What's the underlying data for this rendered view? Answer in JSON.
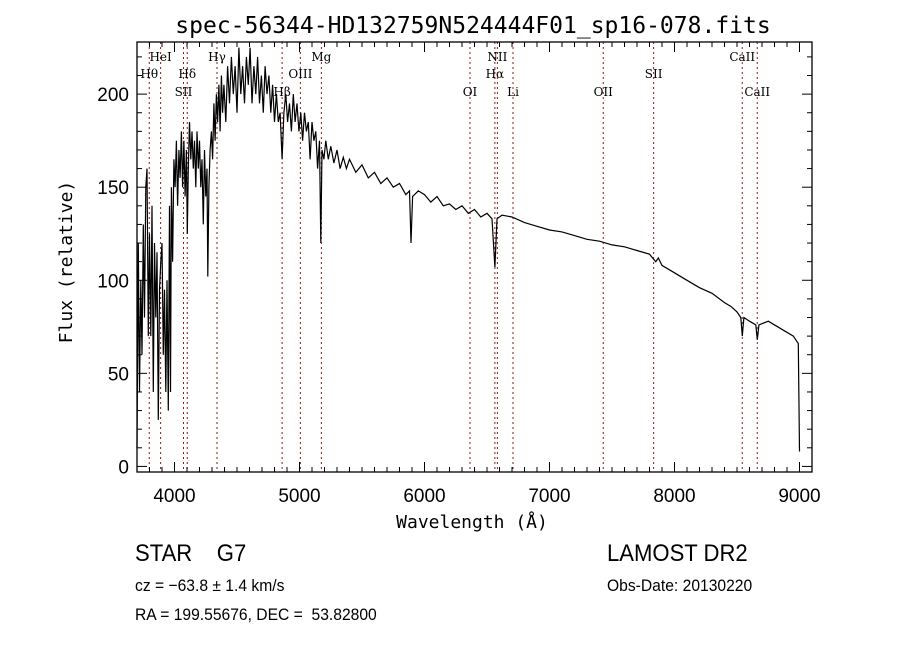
{
  "chart_data": {
    "type": "line",
    "title": "spec-56344-HD132759N524444F01_sp16-078.fits",
    "xlabel": "Wavelength (Å)",
    "ylabel": "Flux (relative)",
    "xlim": [
      3700,
      9100
    ],
    "ylim": [
      -3,
      228
    ],
    "xticks": [
      4000,
      5000,
      6000,
      7000,
      8000,
      9000
    ],
    "yticks": [
      0,
      50,
      100,
      150,
      200
    ],
    "grid": false,
    "line_color": "#000000",
    "marker_color": "#8b1a1a",
    "spectral_lines": [
      {
        "label": "Hθ",
        "wavelength": 3798
      },
      {
        "label": "HeI",
        "wavelength": 3889
      },
      {
        "label": "SII",
        "wavelength": 4072
      },
      {
        "label": "Hδ",
        "wavelength": 4102
      },
      {
        "label": "Hγ",
        "wavelength": 4340
      },
      {
        "label": "Hβ",
        "wavelength": 4861
      },
      {
        "label": "OIII",
        "wavelength": 5007
      },
      {
        "label": "Mg",
        "wavelength": 5175
      },
      {
        "label": "OI",
        "wavelength": 6364
      },
      {
        "label": "Hα",
        "wavelength": 6563
      },
      {
        "label": "NII",
        "wavelength": 6583
      },
      {
        "label": "Li",
        "wavelength": 6708
      },
      {
        "label": "OII",
        "wavelength": 7430
      },
      {
        "label": "SII",
        "wavelength": 7833
      },
      {
        "label": "CaII",
        "wavelength": 8542
      },
      {
        "label": "CaII",
        "wavelength": 8662
      }
    ],
    "series": [
      {
        "name": "spectrum",
        "points": [
          [
            3700,
            10
          ],
          [
            3710,
            120
          ],
          [
            3720,
            40
          ],
          [
            3730,
            100
          ],
          [
            3740,
            60
          ],
          [
            3750,
            130
          ],
          [
            3760,
            80
          ],
          [
            3770,
            150
          ],
          [
            3780,
            160
          ],
          [
            3790,
            70
          ],
          [
            3800,
            125
          ],
          [
            3810,
            70
          ],
          [
            3820,
            140
          ],
          [
            3830,
            40
          ],
          [
            3840,
            120
          ],
          [
            3850,
            80
          ],
          [
            3860,
            115
          ],
          [
            3870,
            25
          ],
          [
            3880,
            95
          ],
          [
            3890,
            110
          ],
          [
            3900,
            120
          ],
          [
            3910,
            60
          ],
          [
            3920,
            95
          ],
          [
            3930,
            40
          ],
          [
            3940,
            100
          ],
          [
            3950,
            30
          ],
          [
            3960,
            140
          ],
          [
            3968,
            40
          ],
          [
            3975,
            150
          ],
          [
            3985,
            110
          ],
          [
            3995,
            165
          ],
          [
            4005,
            150
          ],
          [
            4015,
            175
          ],
          [
            4025,
            140
          ],
          [
            4035,
            170
          ],
          [
            4045,
            155
          ],
          [
            4055,
            180
          ],
          [
            4065,
            150
          ],
          [
            4075,
            175
          ],
          [
            4085,
            145
          ],
          [
            4095,
            170
          ],
          [
            4102,
            125
          ],
          [
            4110,
            160
          ],
          [
            4120,
            185
          ],
          [
            4130,
            165
          ],
          [
            4140,
            180
          ],
          [
            4150,
            160
          ],
          [
            4160,
            175
          ],
          [
            4170,
            150
          ],
          [
            4180,
            180
          ],
          [
            4190,
            160
          ],
          [
            4200,
            175
          ],
          [
            4210,
            150
          ],
          [
            4220,
            165
          ],
          [
            4230,
            130
          ],
          [
            4240,
            170
          ],
          [
            4250,
            145
          ],
          [
            4260,
            160
          ],
          [
            4266,
            102
          ],
          [
            4275,
            150
          ],
          [
            4285,
            170
          ],
          [
            4295,
            180
          ],
          [
            4305,
            165
          ],
          [
            4315,
            195
          ],
          [
            4325,
            175
          ],
          [
            4335,
            200
          ],
          [
            4345,
            185
          ],
          [
            4355,
            205
          ],
          [
            4365,
            180
          ],
          [
            4375,
            210
          ],
          [
            4385,
            190
          ],
          [
            4395,
            205
          ],
          [
            4410,
            185
          ],
          [
            4425,
            215
          ],
          [
            4440,
            195
          ],
          [
            4455,
            220
          ],
          [
            4470,
            200
          ],
          [
            4485,
            215
          ],
          [
            4500,
            190
          ],
          [
            4515,
            225
          ],
          [
            4530,
            200
          ],
          [
            4545,
            215
          ],
          [
            4560,
            195
          ],
          [
            4575,
            220
          ],
          [
            4590,
            205
          ],
          [
            4605,
            225
          ],
          [
            4620,
            195
          ],
          [
            4635,
            215
          ],
          [
            4650,
            200
          ],
          [
            4665,
            220
          ],
          [
            4680,
            195
          ],
          [
            4695,
            210
          ],
          [
            4710,
            190
          ],
          [
            4725,
            215
          ],
          [
            4740,
            200
          ],
          [
            4755,
            210
          ],
          [
            4770,
            190
          ],
          [
            4785,
            205
          ],
          [
            4800,
            185
          ],
          [
            4815,
            200
          ],
          [
            4830,
            185
          ],
          [
            4845,
            190
          ],
          [
            4861,
            165
          ],
          [
            4875,
            190
          ],
          [
            4890,
            200
          ],
          [
            4905,
            185
          ],
          [
            4920,
            195
          ],
          [
            4935,
            180
          ],
          [
            4950,
            200
          ],
          [
            4965,
            185
          ],
          [
            4980,
            195
          ],
          [
            4995,
            180
          ],
          [
            5010,
            190
          ],
          [
            5025,
            175
          ],
          [
            5040,
            190
          ],
          [
            5055,
            180
          ],
          [
            5070,
            185
          ],
          [
            5085,
            165
          ],
          [
            5100,
            185
          ],
          [
            5115,
            175
          ],
          [
            5130,
            180
          ],
          [
            5145,
            160
          ],
          [
            5160,
            175
          ],
          [
            5170,
            120
          ],
          [
            5180,
            170
          ],
          [
            5195,
            165
          ],
          [
            5210,
            175
          ],
          [
            5230,
            165
          ],
          [
            5250,
            172
          ],
          [
            5275,
            163
          ],
          [
            5300,
            170
          ],
          [
            5325,
            160
          ],
          [
            5350,
            166
          ],
          [
            5375,
            160
          ],
          [
            5400,
            165
          ],
          [
            5450,
            158
          ],
          [
            5500,
            162
          ],
          [
            5550,
            155
          ],
          [
            5600,
            158
          ],
          [
            5650,
            152
          ],
          [
            5700,
            155
          ],
          [
            5750,
            150
          ],
          [
            5800,
            152
          ],
          [
            5850,
            146
          ],
          [
            5880,
            148
          ],
          [
            5892,
            120
          ],
          [
            5905,
            145
          ],
          [
            5950,
            148
          ],
          [
            6000,
            146
          ],
          [
            6050,
            142
          ],
          [
            6100,
            145
          ],
          [
            6150,
            140
          ],
          [
            6200,
            141
          ],
          [
            6250,
            138
          ],
          [
            6300,
            140
          ],
          [
            6350,
            136
          ],
          [
            6400,
            138
          ],
          [
            6450,
            134
          ],
          [
            6500,
            136
          ],
          [
            6540,
            133
          ],
          [
            6563,
            107
          ],
          [
            6580,
            133
          ],
          [
            6620,
            135
          ],
          [
            6700,
            134
          ],
          [
            6800,
            131
          ],
          [
            6900,
            129
          ],
          [
            7000,
            127
          ],
          [
            7100,
            126
          ],
          [
            7200,
            124
          ],
          [
            7300,
            122
          ],
          [
            7400,
            121
          ],
          [
            7500,
            119
          ],
          [
            7600,
            118
          ],
          [
            7700,
            116
          ],
          [
            7800,
            114
          ],
          [
            7850,
            110
          ],
          [
            7870,
            112
          ],
          [
            7900,
            108
          ],
          [
            8000,
            104
          ],
          [
            8100,
            100
          ],
          [
            8200,
            96
          ],
          [
            8300,
            93
          ],
          [
            8400,
            88
          ],
          [
            8450,
            86
          ],
          [
            8500,
            83
          ],
          [
            8530,
            80
          ],
          [
            8542,
            70
          ],
          [
            8555,
            80
          ],
          [
            8600,
            78
          ],
          [
            8650,
            76
          ],
          [
            8662,
            68
          ],
          [
            8675,
            76
          ],
          [
            8750,
            78
          ],
          [
            8850,
            74
          ],
          [
            8950,
            70
          ],
          [
            8990,
            66
          ],
          [
            9000,
            8
          ]
        ]
      }
    ]
  },
  "info": {
    "object_class": "STAR    G7",
    "survey": "LAMOST DR2",
    "cz": "cz = −63.8 ± 1.4 km/s",
    "obs_date": "Obs-Date: 20130220",
    "coords": "RA = 199.55676, DEC =  53.82800"
  }
}
